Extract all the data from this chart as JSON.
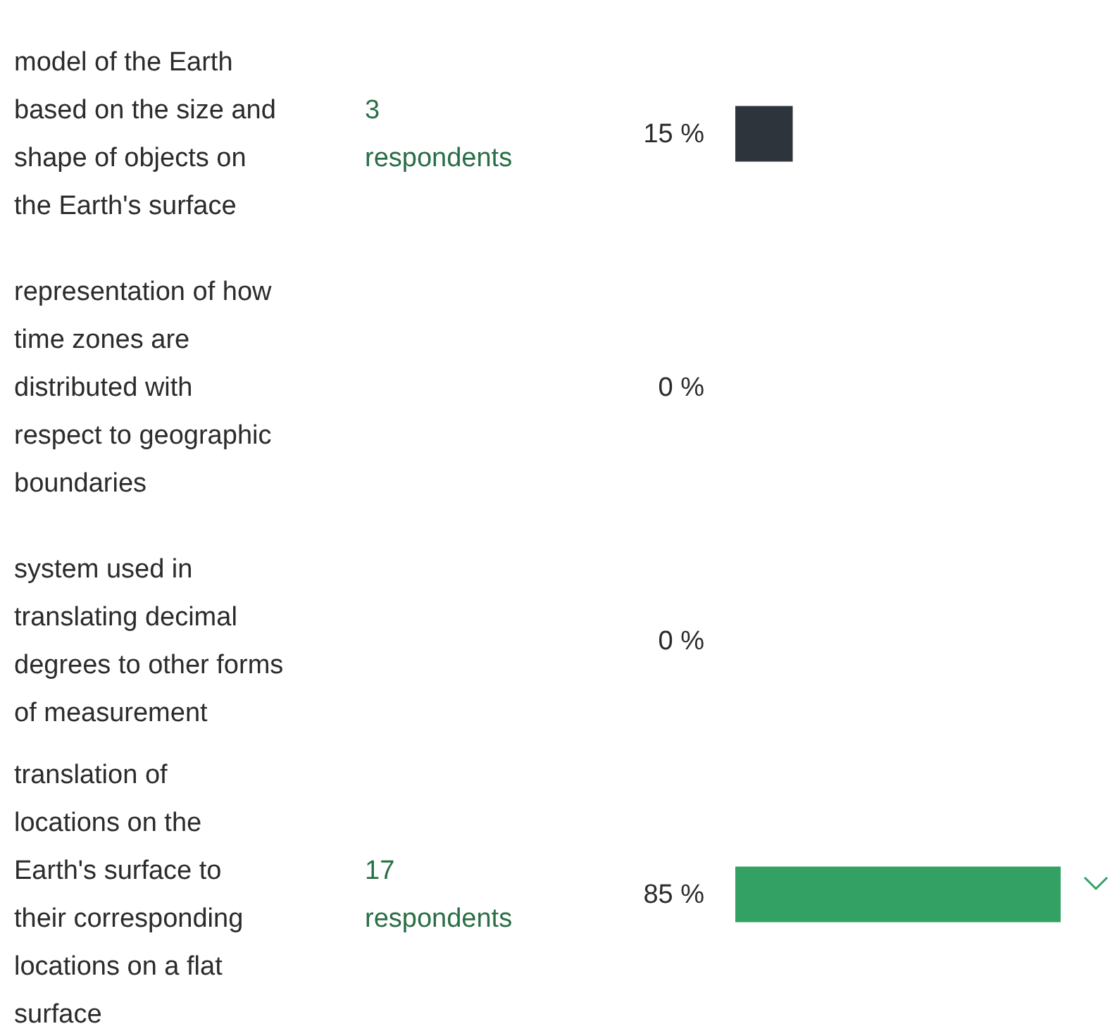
{
  "chart_data": {
    "type": "bar",
    "orientation": "horizontal",
    "categories": [
      "model of the Earth based on the size and shape of objects on the Earth's surface",
      "representation of how time zones are distributed with respect to geographic boundaries",
      "system used in translating decimal degrees to other forms of measurement",
      "translation of locations on the Earth's surface to their corresponding locations on a flat surface"
    ],
    "values": [
      15,
      0,
      0,
      85
    ],
    "colors": [
      "#2d343b",
      "#2d343b",
      "#2d343b",
      "#33a164"
    ],
    "value_labels": [
      "15 %",
      "0 %",
      "0 %",
      "85 %"
    ],
    "annotations": [
      "3 respondents",
      "17 respondents"
    ]
  }
}
